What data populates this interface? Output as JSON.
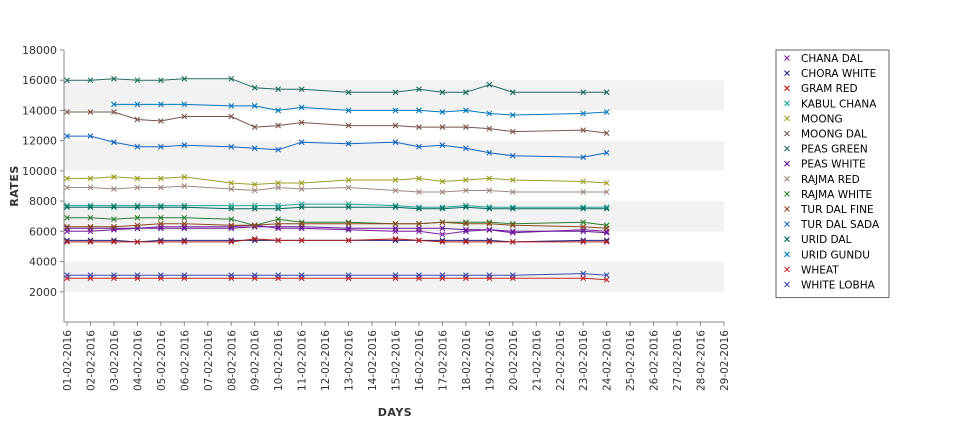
{
  "chart_data": {
    "type": "line",
    "title": "",
    "xlabel": "DAYS",
    "ylabel": "RATES",
    "ylim": [
      0,
      18000
    ],
    "yticks": [
      2000,
      4000,
      6000,
      8000,
      10000,
      12000,
      14000,
      16000,
      18000
    ],
    "grid": "horizontal alternating bands",
    "legend_position": "right",
    "x": [
      "01-02-2016",
      "02-02-2016",
      "03-02-2016",
      "04-02-2016",
      "05-02-2016",
      "06-02-2016",
      "07-02-2016",
      "08-02-2016",
      "09-02-2016",
      "10-02-2016",
      "11-02-2016",
      "12-02-2016",
      "13-02-2016",
      "14-02-2016",
      "15-02-2016",
      "16-02-2016",
      "17-02-2016",
      "18-02-2016",
      "19-02-2016",
      "20-02-2016",
      "21-02-2016",
      "22-02-2016",
      "23-02-2016",
      "24-02-2016",
      "25-02-2016",
      "26-02-2016",
      "27-02-2016",
      "28-02-2016",
      "29-02-2016"
    ],
    "series": [
      {
        "name": "CHANA DAL",
        "color": "#7b1fa2",
        "values": [
          6000,
          6000,
          6100,
          6200,
          6300,
          6300,
          null,
          6300,
          6400,
          6200,
          6200,
          null,
          6100,
          null,
          6000,
          6000,
          5800,
          6000,
          6100,
          5900,
          null,
          null,
          6100,
          6000,
          null,
          null,
          null,
          null,
          null
        ]
      },
      {
        "name": "CHORA WHITE",
        "color": "#1a237e",
        "values": [
          5400,
          5400,
          5400,
          5300,
          5400,
          5400,
          null,
          5400,
          5400,
          5400,
          5400,
          null,
          5400,
          null,
          5400,
          5400,
          5400,
          5400,
          5400,
          5300,
          null,
          null,
          5400,
          5400,
          null,
          null,
          null,
          null,
          null
        ]
      },
      {
        "name": "GRAM RED",
        "color": "#b71c1c",
        "values": [
          5300,
          5300,
          5300,
          5300,
          5300,
          5300,
          null,
          5300,
          5500,
          5400,
          5400,
          null,
          5400,
          null,
          5500,
          5400,
          5300,
          5300,
          5300,
          5300,
          null,
          null,
          5300,
          5300,
          null,
          null,
          null,
          null,
          null
        ]
      },
      {
        "name": "KABUL CHANA",
        "color": "#26a69a",
        "values": [
          7700,
          7700,
          7700,
          7700,
          7700,
          7700,
          null,
          7700,
          7700,
          7700,
          7800,
          null,
          7800,
          null,
          7700,
          7600,
          7600,
          7700,
          7600,
          7600,
          null,
          null,
          7600,
          7600,
          null,
          null,
          null,
          null,
          null
        ]
      },
      {
        "name": "MOONG",
        "color": "#9e9d24",
        "values": [
          9500,
          9500,
          9600,
          9500,
          9500,
          9600,
          null,
          9200,
          9100,
          9200,
          9200,
          null,
          9400,
          null,
          9400,
          9500,
          9300,
          9400,
          9500,
          9400,
          null,
          null,
          9300,
          9200,
          null,
          null,
          null,
          null,
          null
        ]
      },
      {
        "name": "MOONG DAL",
        "color": "#795548",
        "values": [
          13900,
          13900,
          13900,
          13400,
          13300,
          13600,
          null,
          13600,
          12900,
          13000,
          13200,
          null,
          13000,
          null,
          13000,
          12900,
          12900,
          12900,
          12800,
          12600,
          null,
          null,
          12700,
          12500,
          null,
          null,
          null,
          null,
          null
        ]
      },
      {
        "name": "PEAS GREEN",
        "color": "#1e6b60",
        "values": [
          16000,
          16000,
          16100,
          16000,
          16000,
          16100,
          null,
          16100,
          15500,
          15400,
          15400,
          null,
          15200,
          null,
          15200,
          15400,
          15200,
          15200,
          15700,
          15200,
          null,
          null,
          15200,
          15200,
          null,
          null,
          null,
          null,
          null
        ]
      },
      {
        "name": "PEAS WHITE",
        "color": "#6a1b9a",
        "values": [
          6200,
          6200,
          6200,
          6200,
          6200,
          6200,
          null,
          6200,
          6300,
          6300,
          6300,
          null,
          6200,
          null,
          6200,
          6200,
          6200,
          6100,
          6100,
          6000,
          null,
          null,
          6000,
          5900,
          null,
          null,
          null,
          null,
          null
        ]
      },
      {
        "name": "RAJMA RED",
        "color": "#a1887f",
        "values": [
          8900,
          8900,
          8800,
          8900,
          8900,
          9000,
          null,
          8800,
          8700,
          8900,
          8800,
          null,
          8900,
          null,
          8700,
          8600,
          8600,
          8700,
          8700,
          8600,
          null,
          null,
          8600,
          8600,
          null,
          null,
          null,
          null,
          null
        ]
      },
      {
        "name": "RAJMA WHITE",
        "color": "#2e7d32",
        "values": [
          6900,
          6900,
          6800,
          6900,
          6900,
          6900,
          null,
          6800,
          6400,
          6800,
          6600,
          null,
          6600,
          null,
          6500,
          6500,
          6600,
          6600,
          6600,
          6500,
          null,
          null,
          6600,
          6400,
          null,
          null,
          null,
          null,
          null
        ]
      },
      {
        "name": "TUR DAL FINE",
        "color": "#8d4a1f",
        "values": [
          6300,
          6300,
          6300,
          6400,
          6500,
          6500,
          null,
          6400,
          6400,
          6500,
          6500,
          null,
          6500,
          null,
          6500,
          6500,
          6600,
          6500,
          6500,
          6400,
          null,
          null,
          6300,
          6200,
          null,
          null,
          null,
          null,
          null
        ]
      },
      {
        "name": "TUR DAL SADA",
        "color": "#1565c0",
        "values": [
          12300,
          12300,
          11900,
          11600,
          11600,
          11700,
          null,
          11600,
          11500,
          11400,
          11900,
          null,
          11800,
          null,
          11900,
          11600,
          11700,
          11500,
          11200,
          11000,
          null,
          null,
          10900,
          11200,
          null,
          null,
          null,
          null,
          null
        ]
      },
      {
        "name": "URID DAL",
        "color": "#00695c",
        "values": [
          7600,
          7600,
          7600,
          7600,
          7600,
          7600,
          null,
          7500,
          7500,
          7500,
          7600,
          null,
          7600,
          null,
          7600,
          7500,
          7500,
          7600,
          7500,
          7500,
          null,
          null,
          7500,
          7500,
          null,
          null,
          null,
          null,
          null
        ]
      },
      {
        "name": "URID GUNDU",
        "color": "#0277bd",
        "values": [
          null,
          null,
          14400,
          14400,
          14400,
          14400,
          null,
          14300,
          14300,
          14000,
          14200,
          null,
          14000,
          null,
          14000,
          14000,
          13900,
          14000,
          13800,
          13700,
          null,
          null,
          13800,
          13900,
          null,
          null,
          null,
          null,
          null
        ]
      },
      {
        "name": "WHEAT",
        "color": "#c62828",
        "values": [
          2900,
          2900,
          2900,
          2900,
          2900,
          2900,
          null,
          2900,
          2900,
          2900,
          2900,
          null,
          2900,
          null,
          2900,
          2900,
          2900,
          2900,
          2900,
          2900,
          null,
          null,
          2900,
          2800,
          null,
          null,
          null,
          null,
          null
        ]
      },
      {
        "name": "WHITE LOBHA",
        "color": "#3949ab",
        "values": [
          3100,
          3100,
          3100,
          3100,
          3100,
          3100,
          null,
          3100,
          3100,
          3100,
          3100,
          null,
          3100,
          null,
          3100,
          3100,
          3100,
          3100,
          3100,
          3100,
          null,
          null,
          3200,
          3100,
          null,
          null,
          null,
          null,
          null
        ]
      }
    ]
  }
}
